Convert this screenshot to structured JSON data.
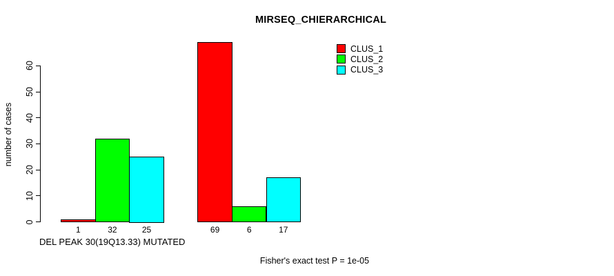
{
  "chart_data": {
    "type": "bar",
    "title": "MIRSEQ_CHIERARCHICAL",
    "ylabel": "number of cases",
    "xlabel": "DEL PEAK 30(19Q13.33) MUTATED",
    "annotation": "Fisher's exact test P = 1e-05",
    "categories": [
      "",
      ""
    ],
    "series": [
      {
        "name": "CLUS_1",
        "color": "#ff0000",
        "values": [
          1,
          69
        ]
      },
      {
        "name": "CLUS_2",
        "color": "#00ff00",
        "values": [
          32,
          6
        ]
      },
      {
        "name": "CLUS_3",
        "color": "#00ffff",
        "values": [
          25,
          17
        ]
      }
    ],
    "bar_value_labels": [
      [
        "1",
        "32",
        "25"
      ],
      [
        "69",
        "6",
        "17"
      ]
    ],
    "yticks": [
      0,
      10,
      20,
      30,
      40,
      50,
      60
    ],
    "ylim": [
      0,
      60
    ],
    "grid": false,
    "legend_position": "top-right",
    "bar_border_color": "#000000",
    "background_color": "#ffffff"
  }
}
